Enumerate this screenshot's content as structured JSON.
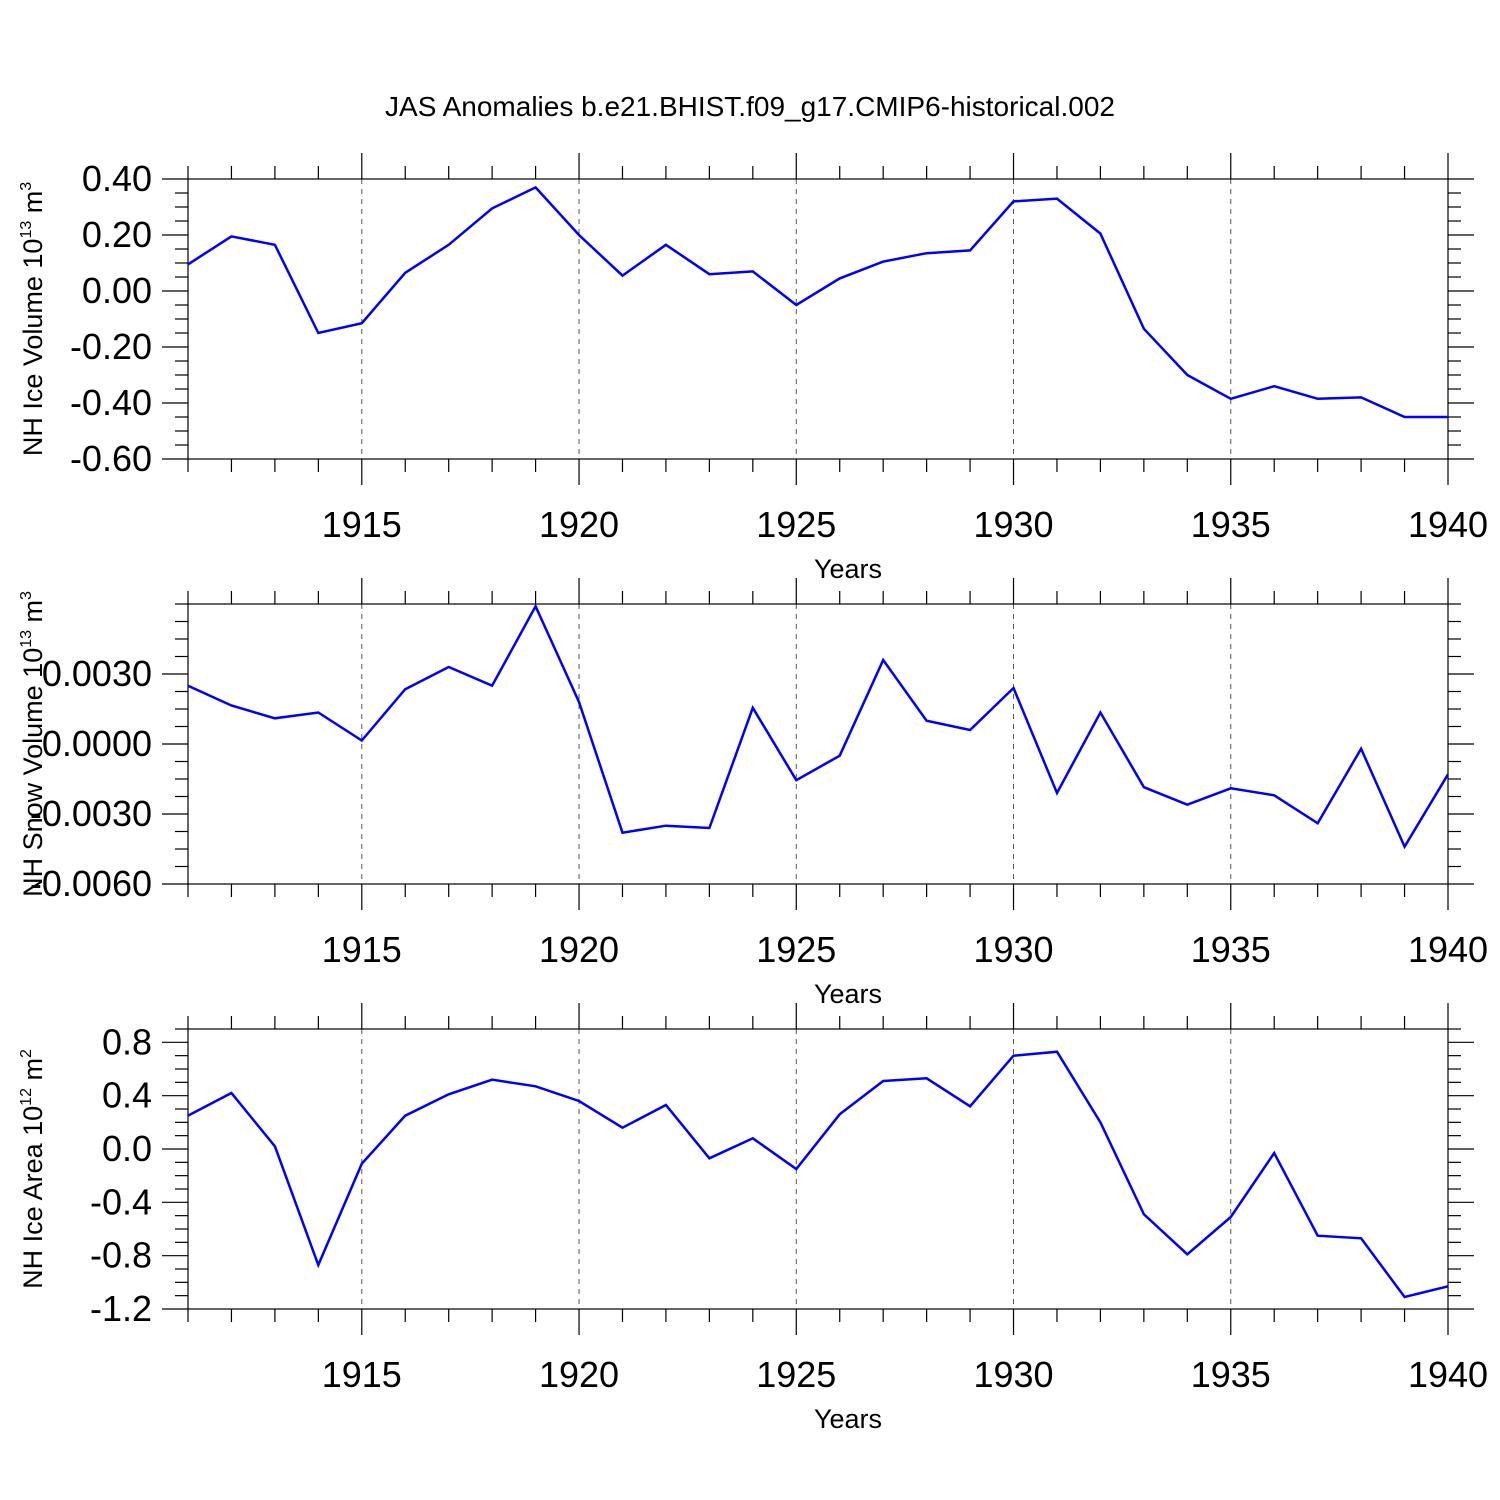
{
  "title": "JAS Anomalies b.e21.BHIST.f09_g17.CMIP6-historical.002",
  "colors": {
    "series": "#0000ff",
    "axis": "#000000",
    "grid": "#555555"
  },
  "chart_data": [
    {
      "type": "line",
      "id": "ice-volume",
      "ylabel": "NH Ice Volume 10",
      "ylabel_sup": "13",
      "ylabel_unit": " m",
      "ylabel_unit_sup": "3",
      "xlabel": "Years",
      "xlim": [
        1911,
        1940
      ],
      "ylim": [
        -0.6,
        0.4
      ],
      "yticks": [
        0.4,
        0.2,
        0.0,
        -0.2,
        -0.4,
        -0.6
      ],
      "ytick_labels": [
        "0.40",
        "0.20",
        "0.00",
        "-0.20",
        "-0.40",
        "-0.60"
      ],
      "xticks": [
        1915,
        1920,
        1925,
        1930,
        1935,
        1940
      ],
      "xtick_labels": [
        "1915",
        "1920",
        "1925",
        "1930",
        "1935",
        "1940"
      ],
      "x": [
        1911,
        1912,
        1913,
        1914,
        1915,
        1916,
        1917,
        1918,
        1919,
        1920,
        1921,
        1922,
        1923,
        1924,
        1925,
        1926,
        1927,
        1928,
        1929,
        1930,
        1931,
        1932,
        1933,
        1934,
        1935,
        1936,
        1937,
        1938,
        1939,
        1940
      ],
      "values": [
        0.095,
        0.195,
        0.165,
        -0.15,
        -0.115,
        0.065,
        0.165,
        0.295,
        0.37,
        0.2,
        0.055,
        0.165,
        0.06,
        0.07,
        -0.05,
        0.045,
        0.105,
        0.135,
        0.145,
        0.32,
        0.33,
        0.205,
        -0.135,
        -0.3,
        -0.385,
        -0.34,
        -0.385,
        -0.38,
        -0.45,
        -0.45
      ]
    },
    {
      "type": "line",
      "id": "snow-volume",
      "ylabel": "NH Snow Volume 10",
      "ylabel_sup": "13",
      "ylabel_unit": " m",
      "ylabel_unit_sup": "3",
      "xlabel": "Years",
      "xlim": [
        1911,
        1940
      ],
      "ylim": [
        -0.006,
        0.006
      ],
      "yticks": [
        0.003,
        0.0,
        -0.003,
        -0.006
      ],
      "ytick_labels": [
        "0.0030",
        "0.0000",
        "-0.0030",
        "-0.0060"
      ],
      "xticks": [
        1915,
        1920,
        1925,
        1930,
        1935,
        1940
      ],
      "xtick_labels": [
        "1915",
        "1920",
        "1925",
        "1930",
        "1935",
        "1940"
      ],
      "x": [
        1911,
        1912,
        1913,
        1914,
        1915,
        1916,
        1917,
        1918,
        1919,
        1920,
        1921,
        1922,
        1923,
        1924,
        1925,
        1926,
        1927,
        1928,
        1929,
        1930,
        1931,
        1932,
        1933,
        1934,
        1935,
        1936,
        1937,
        1938,
        1939,
        1940
      ],
      "values": [
        0.0025,
        0.00165,
        0.0011,
        0.00135,
        0.00015,
        0.00235,
        0.0033,
        0.0025,
        0.0059,
        0.0018,
        -0.0038,
        -0.0035,
        -0.0036,
        0.00155,
        -0.00155,
        -0.0005,
        0.0036,
        0.001,
        0.0006,
        0.0024,
        -0.0021,
        0.00135,
        -0.00185,
        -0.0026,
        -0.0019,
        -0.0022,
        -0.0034,
        -0.0002,
        -0.0044,
        -0.0013
      ]
    },
    {
      "type": "line",
      "id": "ice-area",
      "ylabel": "NH Ice Area 10",
      "ylabel_sup": "12",
      "ylabel_unit": " m",
      "ylabel_unit_sup": "2",
      "xlabel": "Years",
      "xlim": [
        1911,
        1940
      ],
      "ylim": [
        -1.2,
        0.9
      ],
      "yticks": [
        0.8,
        0.4,
        0.0,
        -0.4,
        -0.8,
        -1.2
      ],
      "ytick_labels": [
        "0.8",
        "0.4",
        "0.0",
        "-0.4",
        "-0.8",
        "-1.2"
      ],
      "xticks": [
        1915,
        1920,
        1925,
        1930,
        1935,
        1940
      ],
      "xtick_labels": [
        "1915",
        "1920",
        "1925",
        "1930",
        "1935",
        "1940"
      ],
      "x": [
        1911,
        1912,
        1913,
        1914,
        1915,
        1916,
        1917,
        1918,
        1919,
        1920,
        1921,
        1922,
        1923,
        1924,
        1925,
        1926,
        1927,
        1928,
        1929,
        1930,
        1931,
        1932,
        1933,
        1934,
        1935,
        1936,
        1937,
        1938,
        1939,
        1940
      ],
      "values": [
        0.25,
        0.42,
        0.02,
        -0.87,
        -0.11,
        0.25,
        0.41,
        0.52,
        0.47,
        0.36,
        0.16,
        0.33,
        -0.07,
        0.08,
        -0.15,
        0.26,
        0.51,
        0.53,
        0.32,
        0.7,
        0.73,
        0.2,
        -0.49,
        -0.79,
        -0.51,
        -0.03,
        -0.65,
        -0.67,
        -1.11,
        -1.03
      ]
    }
  ]
}
